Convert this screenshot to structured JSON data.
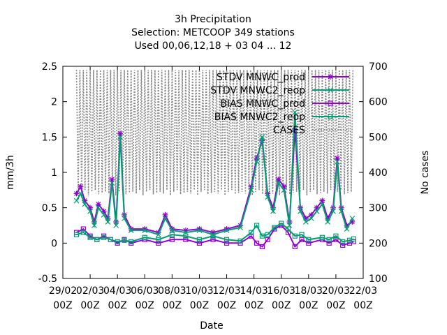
{
  "chart_data": {
    "type": "line",
    "title_lines": [
      "3h Precipitation",
      "Selection: METCOOP     349 stations",
      "Used  00,06,12,18 + 03 04 ... 12"
    ],
    "xlabel": "Date",
    "ylabel": "mm/3h",
    "y2label": "No cases",
    "ylim": [
      -0.5,
      2.5
    ],
    "y2lim": [
      100,
      700
    ],
    "yticks": [
      "-0.5",
      "0",
      "0.5",
      "1",
      "1.5",
      "2",
      "2.5"
    ],
    "y2ticks": [
      "100",
      "200",
      "300",
      "400",
      "500",
      "600",
      "700"
    ],
    "xlim_days": [
      0,
      22
    ],
    "xticks": [
      {
        "day": 0,
        "line1": "29/02",
        "line2": "00Z"
      },
      {
        "day": 2,
        "line1": "02/03",
        "line2": "00Z"
      },
      {
        "day": 4,
        "line1": "04/03",
        "line2": "00Z"
      },
      {
        "day": 6,
        "line1": "06/03",
        "line2": "00Z"
      },
      {
        "day": 8,
        "line1": "08/03",
        "line2": "00Z"
      },
      {
        "day": 10,
        "line1": "10/03",
        "line2": "00Z"
      },
      {
        "day": 12,
        "line1": "12/03",
        "line2": "00Z"
      },
      {
        "day": 14,
        "line1": "14/03",
        "line2": "00Z"
      },
      {
        "day": 16,
        "line1": "16/03",
        "line2": "00Z"
      },
      {
        "day": 18,
        "line1": "18/03",
        "line2": "00Z"
      },
      {
        "day": 20,
        "line1": "20/03",
        "line2": "00Z"
      },
      {
        "day": 22,
        "line1": "22/03",
        "line2": "00Z"
      }
    ],
    "legend_position": "top-right",
    "series": [
      {
        "name": "STDV MNWC_prod",
        "color": "#9400d3",
        "marker": "star",
        "points": [
          [
            1.0,
            0.7
          ],
          [
            1.3,
            0.8
          ],
          [
            1.6,
            0.6
          ],
          [
            2.0,
            0.5
          ],
          [
            2.3,
            0.3
          ],
          [
            2.6,
            0.55
          ],
          [
            3.0,
            0.45
          ],
          [
            3.3,
            0.35
          ],
          [
            3.6,
            0.9
          ],
          [
            3.9,
            0.3
          ],
          [
            4.2,
            1.55
          ],
          [
            4.5,
            0.4
          ],
          [
            5.0,
            0.2
          ],
          [
            6.0,
            0.2
          ],
          [
            7.0,
            0.15
          ],
          [
            7.5,
            0.4
          ],
          [
            8.0,
            0.2
          ],
          [
            9.0,
            0.18
          ],
          [
            10.0,
            0.2
          ],
          [
            11.0,
            0.15
          ],
          [
            12.0,
            0.2
          ],
          [
            13.0,
            0.25
          ],
          [
            13.8,
            0.8
          ],
          [
            14.2,
            1.2
          ],
          [
            14.6,
            1.45
          ],
          [
            15.0,
            0.7
          ],
          [
            15.4,
            0.5
          ],
          [
            15.8,
            0.9
          ],
          [
            16.2,
            0.8
          ],
          [
            16.6,
            0.3
          ],
          [
            17.0,
            1.6
          ],
          [
            17.4,
            0.5
          ],
          [
            17.8,
            0.35
          ],
          [
            18.2,
            0.4
          ],
          [
            18.6,
            0.5
          ],
          [
            19.0,
            0.6
          ],
          [
            19.4,
            0.35
          ],
          [
            19.8,
            0.5
          ],
          [
            20.1,
            1.2
          ],
          [
            20.4,
            0.5
          ],
          [
            20.8,
            0.25
          ],
          [
            21.2,
            0.3
          ]
        ]
      },
      {
        "name": "STDV MNWC2_reop",
        "color": "#009e73",
        "marker": "x",
        "points": [
          [
            1.0,
            0.6
          ],
          [
            1.3,
            0.7
          ],
          [
            1.6,
            0.55
          ],
          [
            2.0,
            0.45
          ],
          [
            2.3,
            0.25
          ],
          [
            2.6,
            0.5
          ],
          [
            3.0,
            0.4
          ],
          [
            3.3,
            0.3
          ],
          [
            3.6,
            0.85
          ],
          [
            3.9,
            0.25
          ],
          [
            4.2,
            1.5
          ],
          [
            4.5,
            0.35
          ],
          [
            5.0,
            0.18
          ],
          [
            6.0,
            0.18
          ],
          [
            7.0,
            0.12
          ],
          [
            7.5,
            0.35
          ],
          [
            8.0,
            0.18
          ],
          [
            9.0,
            0.15
          ],
          [
            10.0,
            0.18
          ],
          [
            11.0,
            0.12
          ],
          [
            12.0,
            0.18
          ],
          [
            13.0,
            0.22
          ],
          [
            13.8,
            0.75
          ],
          [
            14.2,
            1.15
          ],
          [
            14.6,
            1.5
          ],
          [
            15.0,
            0.65
          ],
          [
            15.4,
            0.45
          ],
          [
            15.8,
            0.85
          ],
          [
            16.2,
            0.75
          ],
          [
            16.6,
            0.25
          ],
          [
            17.0,
            1.85
          ],
          [
            17.4,
            0.45
          ],
          [
            17.8,
            0.3
          ],
          [
            18.2,
            0.35
          ],
          [
            18.6,
            0.45
          ],
          [
            19.0,
            0.55
          ],
          [
            19.4,
            0.3
          ],
          [
            19.8,
            0.45
          ],
          [
            20.1,
            1.15
          ],
          [
            20.4,
            0.45
          ],
          [
            20.8,
            0.2
          ],
          [
            21.2,
            0.35
          ]
        ]
      },
      {
        "name": "BIAS MNWC_prod",
        "color": "#9400d3",
        "marker": "square",
        "points": [
          [
            1.0,
            0.15
          ],
          [
            1.5,
            0.2
          ],
          [
            2.0,
            0.1
          ],
          [
            2.5,
            0.05
          ],
          [
            3.0,
            0.1
          ],
          [
            3.5,
            0.05
          ],
          [
            4.0,
            0.0
          ],
          [
            4.5,
            0.05
          ],
          [
            5.0,
            0.0
          ],
          [
            6.0,
            0.05
          ],
          [
            7.0,
            0.0
          ],
          [
            8.0,
            0.05
          ],
          [
            9.0,
            0.05
          ],
          [
            10.0,
            0.0
          ],
          [
            11.0,
            0.05
          ],
          [
            12.0,
            0.0
          ],
          [
            13.0,
            0.0
          ],
          [
            13.8,
            0.1
          ],
          [
            14.2,
            0.0
          ],
          [
            14.6,
            -0.05
          ],
          [
            15.0,
            0.05
          ],
          [
            15.5,
            0.2
          ],
          [
            16.0,
            0.25
          ],
          [
            16.5,
            0.15
          ],
          [
            17.0,
            -0.05
          ],
          [
            17.5,
            0.05
          ],
          [
            18.0,
            0.0
          ],
          [
            19.0,
            0.05
          ],
          [
            19.5,
            0.0
          ],
          [
            20.0,
            0.05
          ],
          [
            20.5,
            -0.03
          ],
          [
            21.0,
            0.0
          ],
          [
            21.3,
            0.02
          ]
        ]
      },
      {
        "name": "BIAS MNWC2_reop",
        "color": "#009e73",
        "marker": "square",
        "points": [
          [
            1.0,
            0.12
          ],
          [
            1.5,
            0.15
          ],
          [
            2.0,
            0.08
          ],
          [
            2.5,
            0.05
          ],
          [
            3.0,
            0.08
          ],
          [
            3.5,
            0.05
          ],
          [
            4.0,
            0.02
          ],
          [
            4.5,
            0.04
          ],
          [
            5.0,
            0.02
          ],
          [
            6.0,
            0.08
          ],
          [
            7.0,
            0.05
          ],
          [
            8.0,
            0.12
          ],
          [
            9.0,
            0.1
          ],
          [
            10.0,
            0.05
          ],
          [
            11.0,
            0.1
          ],
          [
            12.0,
            0.05
          ],
          [
            13.0,
            0.03
          ],
          [
            13.8,
            0.15
          ],
          [
            14.2,
            0.25
          ],
          [
            14.6,
            0.1
          ],
          [
            15.0,
            0.12
          ],
          [
            15.5,
            0.22
          ],
          [
            16.0,
            0.28
          ],
          [
            16.5,
            0.2
          ],
          [
            17.0,
            0.1
          ],
          [
            17.5,
            0.12
          ],
          [
            18.0,
            0.05
          ],
          [
            19.0,
            0.08
          ],
          [
            19.5,
            0.05
          ],
          [
            20.0,
            0.1
          ],
          [
            20.5,
            0.02
          ],
          [
            21.0,
            0.04
          ],
          [
            21.3,
            0.06
          ]
        ]
      }
    ],
    "cases_series": {
      "name": "CASES",
      "color": "#888888",
      "axis": "y2",
      "start_day": 1.0,
      "end_day": 21.3,
      "step_day": 0.125,
      "high": 690,
      "low_default": 345
    }
  }
}
